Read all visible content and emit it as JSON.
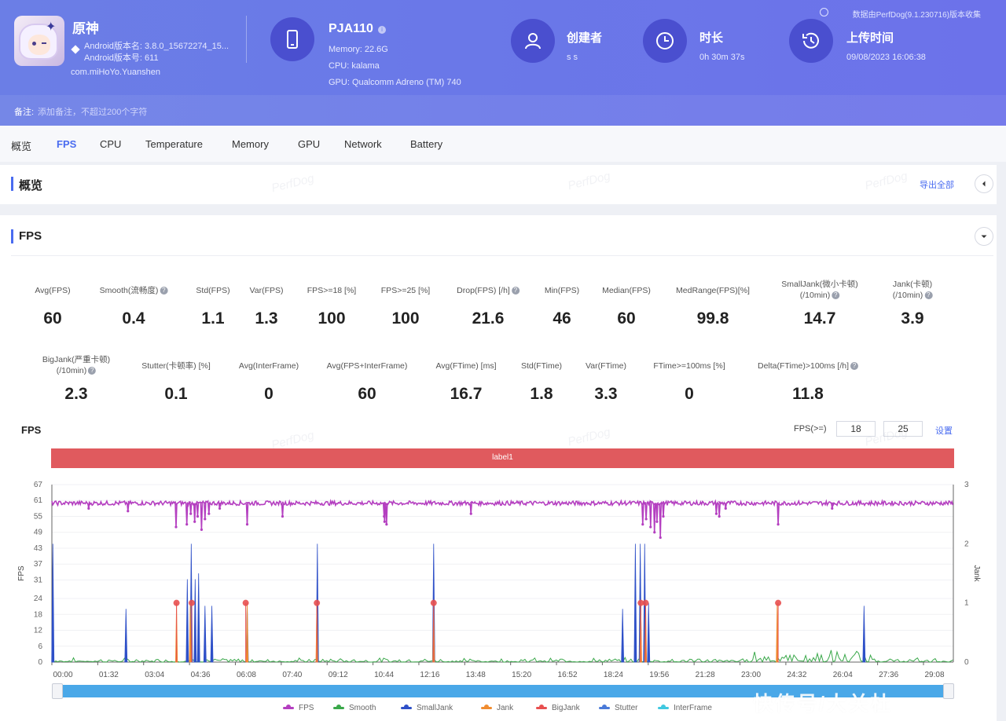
{
  "header": {
    "app": {
      "name": "原神",
      "version_name": "Android版本名: 3.8.0_15672274_15...",
      "version_code": "Android版本号: 611",
      "package": "com.miHoYo.Yuanshen"
    },
    "device": {
      "name": "PJA110",
      "memory": "Memory: 22.6G",
      "cpu": "CPU: kalama",
      "gpu": "GPU: Qualcomm Adreno (TM) 740"
    },
    "creator": {
      "title": "创建者",
      "value": "s s"
    },
    "duration": {
      "title": "时长",
      "value": "0h 30m 37s"
    },
    "upload": {
      "title": "上传时间",
      "value": "09/08/2023 16:06:38"
    },
    "top_note": "数据由PerfDog(9.1.230716)版本收集",
    "remark_label": "备注:",
    "remark_placeholder": "添加备注，不超过200个字符"
  },
  "tabs": [
    {
      "label": "概览",
      "active": false
    },
    {
      "label": "FPS",
      "active": true
    },
    {
      "label": "CPU",
      "active": false
    },
    {
      "label": "Temperature",
      "active": false
    },
    {
      "label": "Memory",
      "active": false
    },
    {
      "label": "GPU",
      "active": false
    },
    {
      "label": "Network",
      "active": false
    },
    {
      "label": "Battery",
      "active": false
    }
  ],
  "overview": {
    "title": "概览",
    "export_label": "导出全部"
  },
  "fps_section": {
    "title": "FPS",
    "stats_row1": [
      {
        "label": "Avg(FPS)",
        "value": "60",
        "help": false
      },
      {
        "label": "Smooth(流畅度)",
        "value": "0.4",
        "help": true
      },
      {
        "label": "Std(FPS)",
        "value": "1.1",
        "help": false
      },
      {
        "label": "Var(FPS)",
        "value": "1.3",
        "help": false
      },
      {
        "label": "FPS>=18 [%]",
        "value": "100",
        "help": false
      },
      {
        "label": "FPS>=25 [%]",
        "value": "100",
        "help": false
      },
      {
        "label": "Drop(FPS) [/h]",
        "value": "21.6",
        "help": true
      },
      {
        "label": "Min(FPS)",
        "value": "46",
        "help": false
      },
      {
        "label": "Median(FPS)",
        "value": "60",
        "help": false
      },
      {
        "label": "MedRange(FPS)[%]",
        "value": "99.8",
        "help": false
      },
      {
        "label": "SmallJank(微小卡顿)",
        "label2": "(/10min)",
        "value": "14.7",
        "help": true
      },
      {
        "label": "Jank(卡顿)",
        "label2": "(/10min)",
        "value": "3.9",
        "help": true
      }
    ],
    "stats_row2": [
      {
        "label": "BigJank(严重卡顿)",
        "label2": "(/10min)",
        "value": "2.3",
        "help": true
      },
      {
        "label": "Stutter(卡顿率) [%]",
        "value": "0.1",
        "help": false
      },
      {
        "label": "Avg(InterFrame)",
        "value": "0",
        "help": false
      },
      {
        "label": "Avg(FPS+InterFrame)",
        "value": "60",
        "help": false
      },
      {
        "label": "Avg(FTime) [ms]",
        "value": "16.7",
        "help": false
      },
      {
        "label": "Std(FTime)",
        "value": "1.8",
        "help": false
      },
      {
        "label": "Var(FTime)",
        "value": "3.3",
        "help": false
      },
      {
        "label": "FTime>=100ms [%]",
        "value": "0",
        "help": false
      },
      {
        "label": "Delta(FTime)>100ms [/h]",
        "value": "11.8",
        "help": true
      }
    ],
    "chart_title": "FPS",
    "threshold_label": "FPS(>=)",
    "threshold_1": "18",
    "threshold_2": "25",
    "setting_label": "设置",
    "label_band": "label1",
    "watermark": "PerfDog",
    "corner_watermark": "快传号/大关杜"
  },
  "chart_data": {
    "type": "line",
    "xlabel": "",
    "ylabel_left": "FPS",
    "ylabel_right": "Jank",
    "y_left_ticks": [
      0,
      6,
      12,
      18,
      24,
      31,
      37,
      43,
      49,
      55,
      61,
      67
    ],
    "y_right_ticks": [
      0,
      1,
      2,
      3
    ],
    "ylim_left": [
      0,
      67
    ],
    "ylim_right": [
      0,
      3
    ],
    "x_ticks": [
      "00:00",
      "01:32",
      "03:04",
      "04:36",
      "06:08",
      "07:40",
      "09:12",
      "10:44",
      "12:16",
      "13:48",
      "15:20",
      "16:52",
      "18:24",
      "19:56",
      "21:28",
      "23:00",
      "24:32",
      "26:04",
      "27:36",
      "29:08"
    ],
    "x_range_sec": [
      0,
      1837
    ],
    "fps_baseline": 60,
    "fps_dips": [
      {
        "t": 75,
        "fps": 58
      },
      {
        "t": 155,
        "fps": 57
      },
      {
        "t": 253,
        "fps": 51
      },
      {
        "t": 275,
        "fps": 52
      },
      {
        "t": 283,
        "fps": 56
      },
      {
        "t": 291,
        "fps": 53
      },
      {
        "t": 297,
        "fps": 55
      },
      {
        "t": 305,
        "fps": 50
      },
      {
        "t": 312,
        "fps": 54
      },
      {
        "t": 320,
        "fps": 56
      },
      {
        "t": 342,
        "fps": 58
      },
      {
        "t": 398,
        "fps": 52
      },
      {
        "t": 470,
        "fps": 55
      },
      {
        "t": 677,
        "fps": 55
      },
      {
        "t": 678,
        "fps": 53
      },
      {
        "t": 682,
        "fps": 52
      },
      {
        "t": 854,
        "fps": 56
      },
      {
        "t": 1204,
        "fps": 52
      },
      {
        "t": 1211,
        "fps": 54
      },
      {
        "t": 1220,
        "fps": 51
      },
      {
        "t": 1228,
        "fps": 49
      },
      {
        "t": 1233,
        "fps": 53
      },
      {
        "t": 1240,
        "fps": 47
      },
      {
        "t": 1246,
        "fps": 55
      },
      {
        "t": 1354,
        "fps": 56
      },
      {
        "t": 1360,
        "fps": 55
      },
      {
        "t": 1373,
        "fps": 58
      },
      {
        "t": 1480,
        "fps": 52
      },
      {
        "t": 1590,
        "fps": 58
      }
    ],
    "small_jank": [
      {
        "t": 2,
        "h": 2.0
      },
      {
        "t": 151,
        "h": 0.9
      },
      {
        "t": 276,
        "h": 1.4
      },
      {
        "t": 284,
        "h": 2.0
      },
      {
        "t": 292,
        "h": 1.4
      },
      {
        "t": 299,
        "h": 1.5
      },
      {
        "t": 312,
        "h": 0.95
      },
      {
        "t": 326,
        "h": 0.95
      },
      {
        "t": 398,
        "h": 1.0
      },
      {
        "t": 541,
        "h": 2.0
      },
      {
        "t": 778,
        "h": 2.0
      },
      {
        "t": 1163,
        "h": 0.9
      },
      {
        "t": 1189,
        "h": 2.0
      },
      {
        "t": 1199,
        "h": 2.0
      },
      {
        "t": 1208,
        "h": 2.0
      },
      {
        "t": 1216,
        "h": 1.0
      },
      {
        "t": 1655,
        "h": 0.95
      }
    ],
    "jank": [
      {
        "t": 254,
        "h": 1.0
      },
      {
        "t": 282,
        "h": 1.0
      },
      {
        "t": 398,
        "h": 1.0
      },
      {
        "t": 540,
        "h": 1.0
      },
      {
        "t": 778,
        "h": 1.0
      },
      {
        "t": 1200,
        "h": 1.0
      },
      {
        "t": 1210,
        "h": 1.0
      },
      {
        "t": 1478,
        "h": 1.0
      }
    ],
    "big_jank": [
      {
        "t": 254
      },
      {
        "t": 285
      },
      {
        "t": 395
      },
      {
        "t": 540
      },
      {
        "t": 778
      },
      {
        "t": 1200
      },
      {
        "t": 1210
      },
      {
        "t": 1480
      }
    ],
    "smooth_noise_level": 0.08,
    "series": [
      {
        "name": "FPS",
        "color": "#b43fc0"
      },
      {
        "name": "Smooth",
        "color": "#3aa84a"
      },
      {
        "name": "SmallJank",
        "color": "#2e50c8"
      },
      {
        "name": "Jank",
        "color": "#f08c30"
      },
      {
        "name": "BigJank",
        "color": "#e85050"
      },
      {
        "name": "Stutter",
        "color": "#4a7ad8"
      },
      {
        "name": "InterFrame",
        "color": "#40c8e0"
      }
    ]
  }
}
